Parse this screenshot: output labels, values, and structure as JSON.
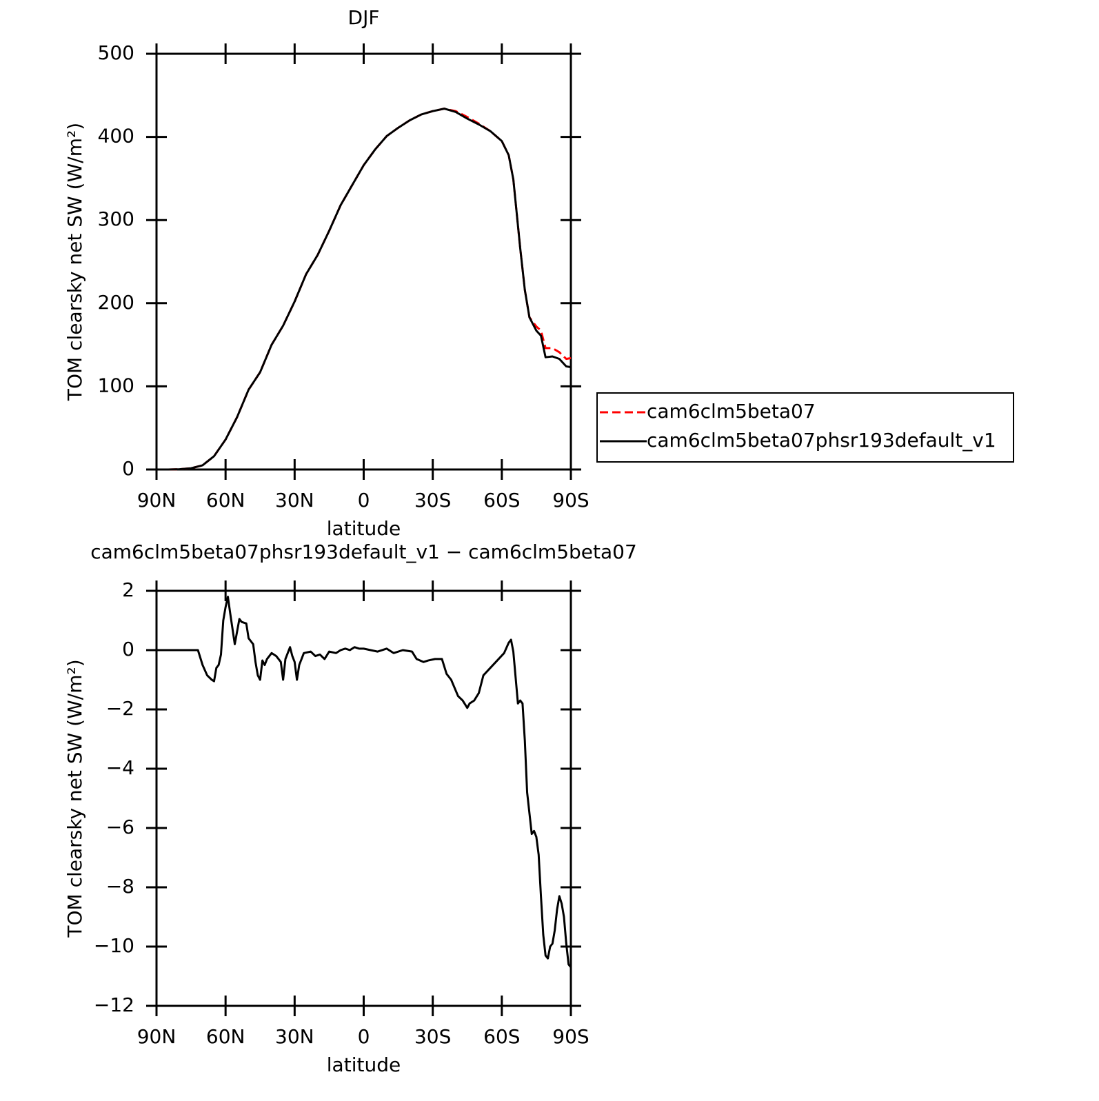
{
  "chart_data": [
    {
      "type": "line",
      "title": "DJF",
      "x_label": "latitude",
      "y_label": "TOM clearsky net SW (W/m²)",
      "x": [
        90,
        85,
        80,
        75,
        70,
        65,
        60,
        55,
        50,
        45,
        40,
        35,
        30,
        25,
        20,
        15,
        10,
        5,
        0,
        -5,
        -10,
        -15,
        -20,
        -25,
        -30,
        -35,
        -40,
        -45,
        -50,
        -55,
        -60,
        -63,
        -65,
        -68,
        -70,
        -72,
        -75,
        -77,
        -79,
        -82,
        -85,
        -88,
        -90
      ],
      "series": [
        {
          "name": "cam6clm5beta07",
          "color": "#ff0000",
          "line_style": "dashed",
          "values": [
            0,
            0,
            0.3,
            1.5,
            5,
            16,
            36,
            63,
            96,
            117,
            150,
            173,
            202,
            235,
            258,
            287,
            318,
            342,
            366,
            385,
            401,
            411,
            420,
            427,
            431,
            434,
            431,
            424,
            416,
            407,
            395,
            378,
            349,
            266,
            216,
            183,
            172,
            167,
            146,
            146,
            141,
            133,
            134
          ]
        },
        {
          "name": "cam6clm5beta07phsr193default_v1",
          "color": "#000000",
          "line_style": "solid",
          "values": [
            0,
            0,
            0.3,
            1.5,
            5,
            16,
            36,
            63,
            96,
            117,
            150,
            173,
            202,
            235,
            258,
            287,
            318,
            342,
            366,
            385,
            401,
            411,
            420,
            427,
            431,
            434,
            430,
            422,
            415,
            407,
            395,
            378,
            349,
            266,
            216,
            183,
            167,
            161,
            135,
            136,
            133,
            124,
            123
          ]
        }
      ],
      "xlim": [
        90,
        -90
      ],
      "xticks": [
        {
          "value": 90,
          "label": "90N"
        },
        {
          "value": 60,
          "label": "60N"
        },
        {
          "value": 30,
          "label": "30N"
        },
        0,
        {
          "value": -30,
          "label": "30S"
        },
        {
          "value": -60,
          "label": "60S"
        },
        {
          "value": -90,
          "label": "90S"
        }
      ],
      "ylim": [
        0,
        500
      ],
      "yticks": [
        0,
        100,
        200,
        300,
        400,
        500
      ],
      "legend_position": "right"
    },
    {
      "type": "line",
      "title": "cam6clm5beta07phsr193default_v1 − cam6clm5beta07",
      "x_label": "latitude",
      "y_label": "TOM clearsky net SW (W/m²)",
      "x": [
        90,
        80,
        72,
        70,
        68,
        66,
        65,
        64,
        63,
        62,
        61,
        60,
        59,
        58,
        56,
        54,
        53,
        51,
        50,
        48,
        47,
        46,
        45,
        44,
        43,
        42,
        40,
        38,
        36,
        35,
        34,
        32,
        31,
        30,
        29,
        28,
        26,
        23,
        21,
        19,
        17,
        15,
        12,
        10,
        8,
        6,
        4,
        2,
        0,
        -3,
        -6,
        -10,
        -13,
        -17,
        -21,
        -23,
        -26,
        -28,
        -31,
        -34,
        -36,
        -38,
        -41,
        -43,
        -45,
        -46,
        -48,
        -50,
        -52,
        -55,
        -58,
        -61,
        -63,
        -64,
        -65,
        -67,
        -68,
        -69,
        -70,
        -71,
        -73,
        -74,
        -75,
        -76,
        -77,
        -78,
        -79,
        -80,
        -81,
        -82,
        -83,
        -84,
        -85,
        -86,
        -87,
        -88,
        -89,
        -90
      ],
      "series": [
        {
          "name": "cam6clm5beta07phsr193default_v1 − cam6clm5beta07",
          "color": "#000000",
          "line_style": "solid",
          "values": [
            0,
            0,
            0,
            -0.5,
            -0.85,
            -1.0,
            -1.05,
            -0.6,
            -0.5,
            -0.15,
            1.0,
            1.45,
            1.8,
            1.25,
            0.2,
            1.05,
            0.95,
            0.9,
            0.4,
            0.2,
            -0.4,
            -0.85,
            -1.0,
            -0.35,
            -0.5,
            -0.3,
            -0.1,
            -0.2,
            -0.4,
            -1.0,
            -0.3,
            0.1,
            -0.2,
            -0.4,
            -1.0,
            -0.5,
            -0.1,
            -0.05,
            -0.2,
            -0.15,
            -0.3,
            -0.05,
            -0.1,
            0,
            0.05,
            0,
            0.1,
            0.05,
            0.05,
            0,
            -0.05,
            0.05,
            -0.1,
            0,
            -0.05,
            -0.3,
            -0.4,
            -0.35,
            -0.3,
            -0.3,
            -0.8,
            -1.0,
            -1.55,
            -1.7,
            -1.95,
            -1.8,
            -1.7,
            -1.45,
            -0.85,
            -0.6,
            -0.35,
            -0.1,
            0.25,
            0.35,
            -0.05,
            -1.8,
            -1.7,
            -1.8,
            -3.05,
            -4.8,
            -6.2,
            -6.1,
            -6.3,
            -6.9,
            -8.3,
            -9.6,
            -10.3,
            -10.4,
            -10.0,
            -9.9,
            -9.45,
            -8.75,
            -8.3,
            -8.55,
            -9.0,
            -9.9,
            -10.6,
            -10.7
          ]
        }
      ],
      "xlim": [
        90,
        -90
      ],
      "xticks": [
        {
          "value": 90,
          "label": "90N"
        },
        {
          "value": 60,
          "label": "60N"
        },
        {
          "value": 30,
          "label": "30N"
        },
        0,
        {
          "value": -30,
          "label": "30S"
        },
        {
          "value": -60,
          "label": "60S"
        },
        {
          "value": -90,
          "label": "90S"
        }
      ],
      "ylim": [
        -12,
        2
      ],
      "yticks": [
        {
          "value": -12,
          "label": "−12"
        },
        {
          "value": -10,
          "label": "−10"
        },
        {
          "value": -8,
          "label": "−8"
        },
        {
          "value": -6,
          "label": "−6"
        },
        {
          "value": -4,
          "label": "−4"
        },
        {
          "value": -2,
          "label": "−2"
        },
        0,
        2
      ]
    }
  ]
}
